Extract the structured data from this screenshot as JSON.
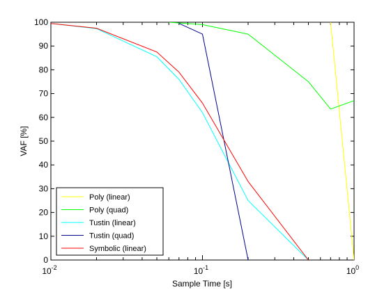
{
  "chart_data": {
    "type": "line",
    "xlabel": "Sample Time [s]",
    "ylabel": "VAF [%]",
    "xscale": "log",
    "xlim": [
      0.01,
      1
    ],
    "ylim": [
      0,
      100
    ],
    "grid": false,
    "legend_position": "bottom-left",
    "x_ticks": [
      {
        "value": 0.01,
        "base": "10",
        "exp": "-2"
      },
      {
        "value": 0.1,
        "base": "10",
        "exp": "-1"
      },
      {
        "value": 1,
        "base": "10",
        "exp": "0"
      }
    ],
    "y_ticks": [
      0,
      10,
      20,
      30,
      40,
      50,
      60,
      70,
      80,
      90,
      100
    ],
    "series": [
      {
        "name": "Poly (linear)",
        "color": "#ffff00",
        "points": [
          [
            0.7,
            100
          ],
          [
            1.0,
            0
          ]
        ]
      },
      {
        "name": "Poly (quad)",
        "color": "#00ff00",
        "points": [
          [
            0.06,
            100
          ],
          [
            0.1,
            99
          ],
          [
            0.2,
            95
          ],
          [
            0.5,
            75
          ],
          [
            0.7,
            63.5
          ],
          [
            1.0,
            67
          ]
        ]
      },
      {
        "name": "Tustin (linear)",
        "color": "#00ffff",
        "points": [
          [
            0.01,
            99.5
          ],
          [
            0.02,
            97.3
          ],
          [
            0.05,
            85.5
          ],
          [
            0.07,
            76
          ],
          [
            0.1,
            62
          ],
          [
            0.2,
            25
          ],
          [
            0.5,
            0
          ]
        ]
      },
      {
        "name": "Tustin (quad)",
        "color": "#00008b",
        "points": [
          [
            0.07,
            99.5
          ],
          [
            0.1,
            95
          ],
          [
            0.2,
            0
          ]
        ]
      },
      {
        "name": "Symbolic (linear)",
        "color": "#ff0000",
        "points": [
          [
            0.01,
            99.5
          ],
          [
            0.02,
            97.5
          ],
          [
            0.05,
            87.5
          ],
          [
            0.07,
            79
          ],
          [
            0.1,
            66
          ],
          [
            0.2,
            33
          ],
          [
            0.5,
            0
          ]
        ]
      }
    ]
  }
}
